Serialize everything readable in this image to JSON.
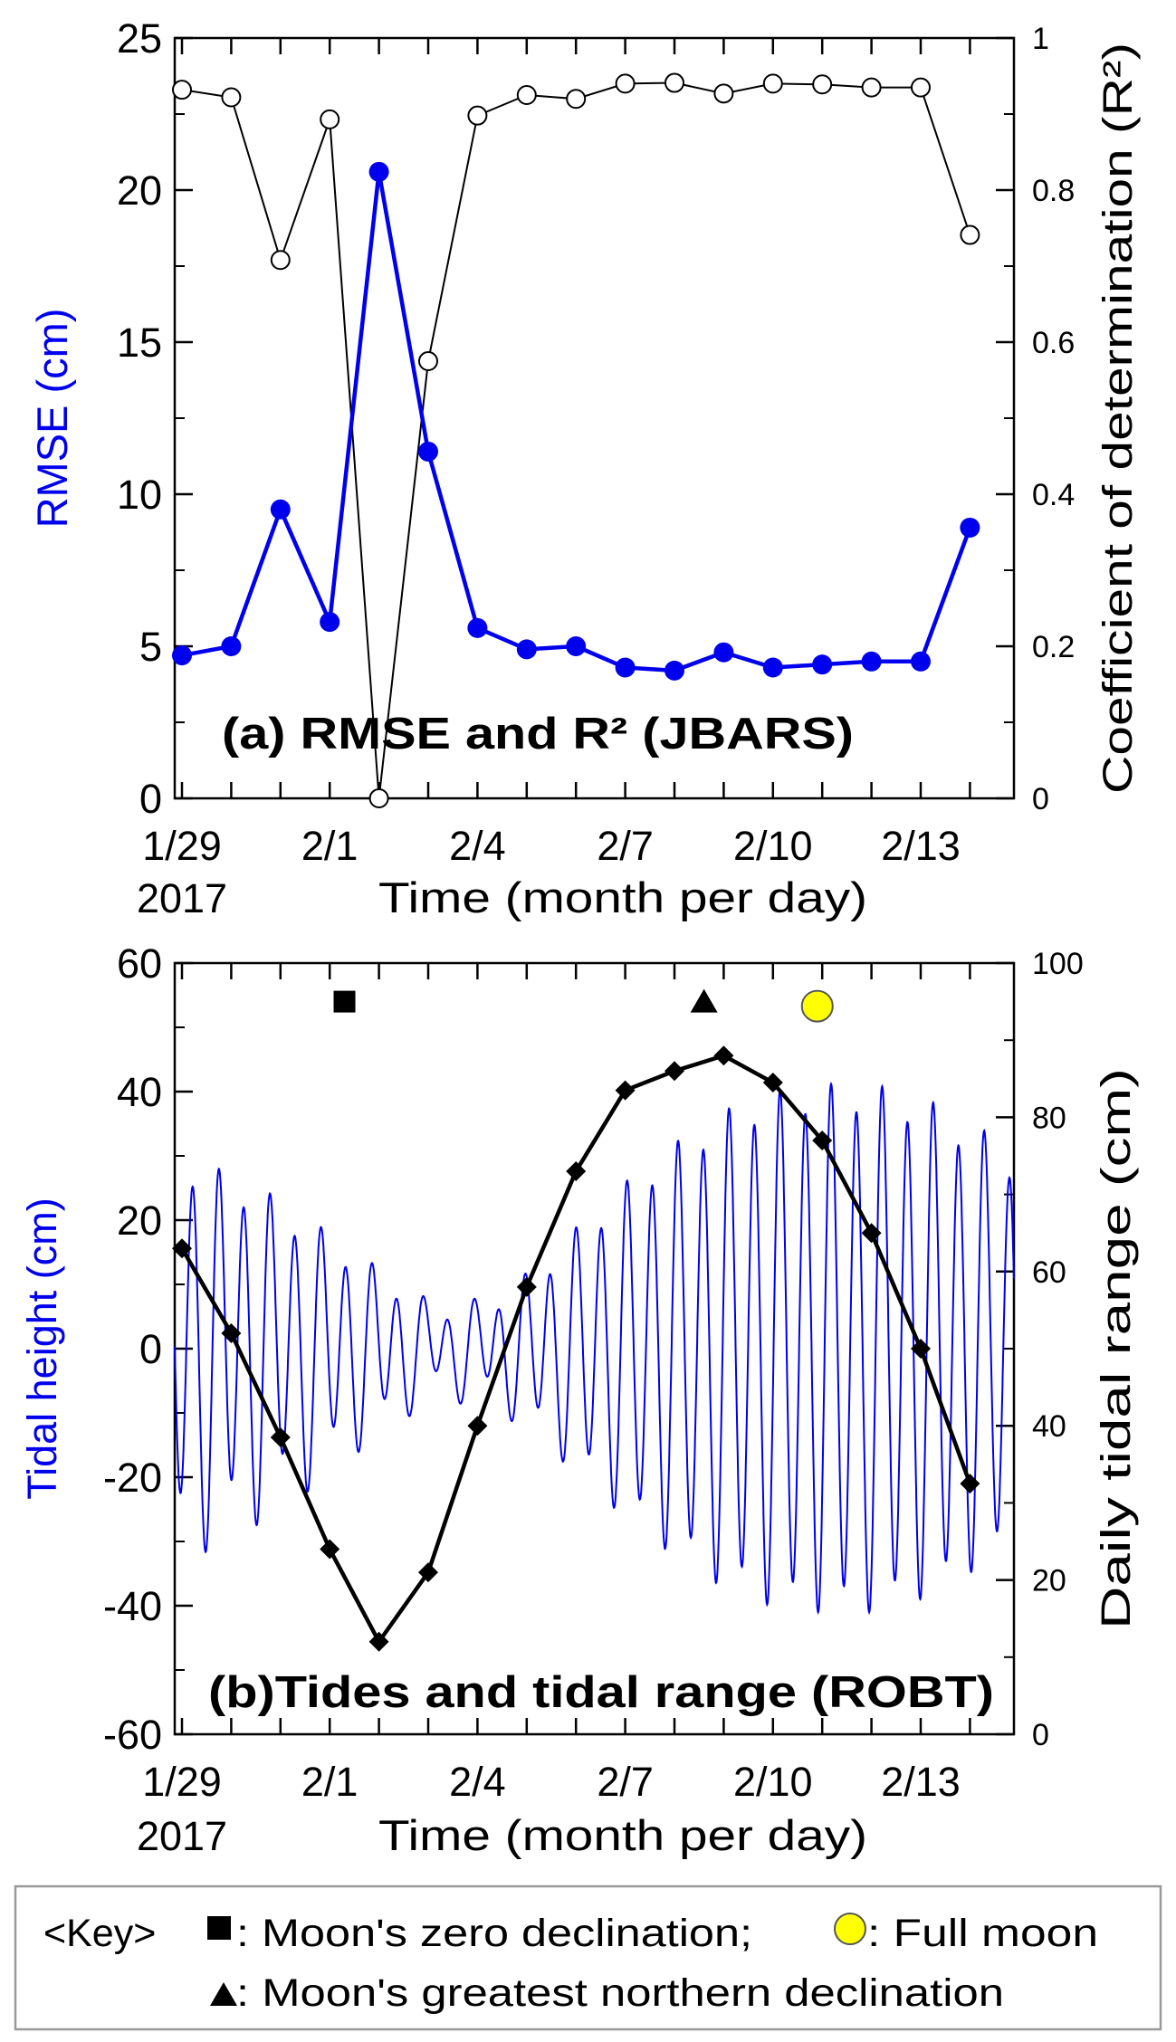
{
  "chart_data": [
    {
      "type": "line",
      "panel_title": "(a) RMSE and R² (JBARS)",
      "xlabel": "Time (month per day)",
      "ylabel": "RMSE (cm)",
      "ylabel2": "Coefficient of determination (R²)",
      "xlim": [
        0,
        17
      ],
      "ylim": [
        0,
        25
      ],
      "y2lim": [
        0,
        1
      ],
      "x_ticks": [
        0,
        3,
        6,
        9,
        12,
        15
      ],
      "x_tick_labels": [
        "1/29",
        "2/1",
        "2/4",
        "2/7",
        "2/10",
        "2/13"
      ],
      "year_label": "2017",
      "y_ticks": [
        "0",
        "5",
        "10",
        "15",
        "20",
        "25"
      ],
      "y2_ticks": [
        "0",
        "0.2",
        "0.4",
        "0.6",
        "0.8",
        "1"
      ],
      "series": [
        {
          "name": "RMSE",
          "axis": "left",
          "color": "#0000ee",
          "marker": "filled-circle",
          "x": [
            0,
            1,
            2,
            3,
            4,
            5,
            6,
            7,
            8,
            9,
            10,
            11,
            12,
            13,
            14,
            15,
            16
          ],
          "values": [
            4.7,
            5.0,
            9.5,
            5.8,
            20.6,
            11.4,
            5.6,
            4.9,
            5.0,
            4.3,
            4.2,
            4.8,
            4.3,
            4.4,
            4.5,
            4.5,
            8.9
          ]
        },
        {
          "name": "R²",
          "axis": "right",
          "color": "#000000",
          "marker": "open-circle",
          "x": [
            0,
            1,
            2,
            3,
            4,
            5,
            6,
            7,
            8,
            9,
            10,
            11,
            12,
            13,
            14,
            15,
            16
          ],
          "values": [
            0.932,
            0.922,
            0.708,
            0.893,
            0.0,
            0.575,
            0.898,
            0.925,
            0.92,
            0.94,
            0.941,
            0.927,
            0.94,
            0.939,
            0.935,
            0.935,
            0.741
          ]
        }
      ]
    },
    {
      "type": "line",
      "panel_title": "(b)Tides and tidal range (ROBT)",
      "xlabel": "Time (month per day)",
      "ylabel": "Tidal height (cm)",
      "ylabel2": "Daily tidal range (cm)",
      "xlim": [
        0,
        17
      ],
      "ylim": [
        -60,
        60
      ],
      "y2lim": [
        0,
        100
      ],
      "x_ticks": [
        0,
        3,
        6,
        9,
        12,
        15
      ],
      "x_tick_labels": [
        "1/29",
        "2/1",
        "2/4",
        "2/7",
        "2/10",
        "2/13"
      ],
      "year_label": "2017",
      "y_ticks": [
        "-60",
        "-40",
        "-20",
        "0",
        "20",
        "40",
        "60"
      ],
      "y2_ticks": [
        "0",
        "20",
        "40",
        "60",
        "80",
        "100"
      ],
      "series": [
        {
          "name": "Tidal height",
          "axis": "left",
          "color": "#0000ee",
          "marker": "none",
          "semidiurnal_amplitude_by_day": [
            28,
            25,
            21,
            16,
            11,
            6,
            6,
            10,
            17,
            24,
            30,
            35,
            38,
            39,
            39,
            37,
            33,
            28
          ],
          "diurnal_amplitude_by_day": [
            6,
            5,
            5,
            4,
            3,
            3,
            3,
            3,
            3,
            3,
            3,
            3,
            3,
            3,
            3,
            3,
            3,
            3
          ],
          "mean_level": 0
        },
        {
          "name": "Daily tidal range",
          "axis": "right",
          "color": "#000000",
          "marker": "diamond",
          "x": [
            0,
            1,
            2,
            3,
            4,
            5,
            6,
            7,
            8,
            9,
            10,
            11,
            12,
            13,
            14,
            15,
            16
          ],
          "values": [
            63,
            52,
            38.5,
            24,
            12,
            21,
            40,
            58,
            73,
            83.5,
            86,
            88,
            84.5,
            77,
            65,
            50,
            32.5
          ]
        }
      ],
      "events": [
        {
          "name": "Moon's zero declination",
          "marker": "square",
          "x": 3.3
        },
        {
          "name": "Moon's greatest northern declination",
          "marker": "triangle",
          "x": 10.6
        },
        {
          "name": "Full moon",
          "marker": "yellow-circle",
          "x": 12.9
        }
      ]
    }
  ],
  "legend": {
    "prefix": "<Key>",
    "zero_declination": ": Moon's zero declination;",
    "full_moon": ": Full moon",
    "northern_declination": ": Moon's greatest northern declination"
  },
  "colors": {
    "blue": "#0000ee",
    "black": "#000000",
    "yellow": "#ffff00",
    "legend_border": "#999999"
  }
}
